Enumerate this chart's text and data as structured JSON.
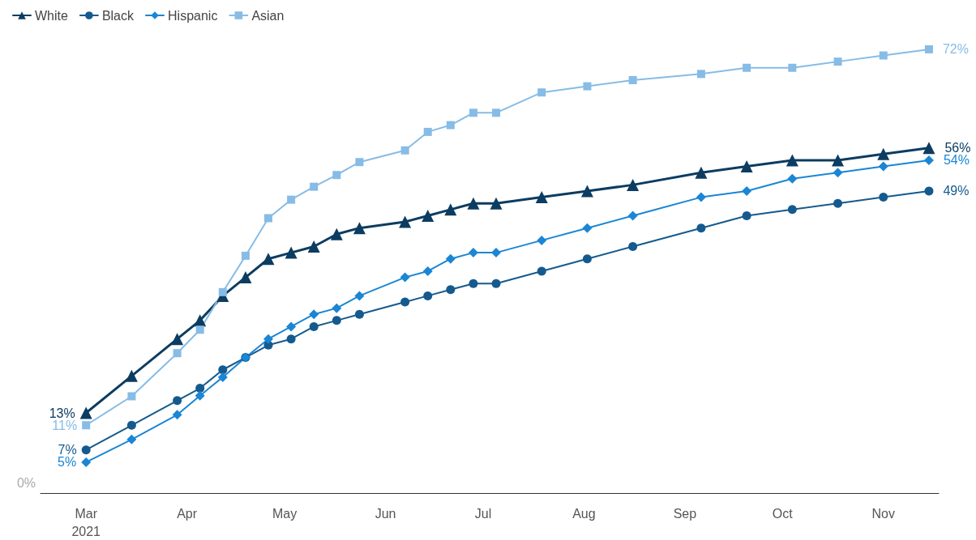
{
  "chart_data": {
    "type": "line",
    "x": [
      "2021-03-01",
      "2021-03-15",
      "2021-03-29",
      "2021-04-05",
      "2021-04-12",
      "2021-04-19",
      "2021-04-26",
      "2021-05-03",
      "2021-05-10",
      "2021-05-17",
      "2021-05-24",
      "2021-06-07",
      "2021-06-14",
      "2021-06-21",
      "2021-06-28",
      "2021-07-05",
      "2021-07-19",
      "2021-08-02",
      "2021-08-16",
      "2021-09-06",
      "2021-09-20",
      "2021-10-04",
      "2021-10-18",
      "2021-11-01",
      "2021-11-15"
    ],
    "series": [
      {
        "name": "White",
        "color": "#0c3c61",
        "marker": "triangle",
        "values": [
          13,
          19,
          25,
          28,
          32,
          35,
          38,
          39,
          40,
          42,
          43,
          44,
          45,
          46,
          47,
          47,
          48,
          49,
          50,
          52,
          53,
          54,
          54,
          55,
          56
        ],
        "value_labels": [
          "13%",
          null,
          null,
          null,
          null,
          null,
          null,
          null,
          null,
          null,
          null,
          null,
          null,
          null,
          null,
          null,
          null,
          null,
          null,
          null,
          null,
          null,
          null,
          null,
          "56%"
        ]
      },
      {
        "name": "Black",
        "color": "#155a8e",
        "marker": "circle",
        "values": [
          7,
          11,
          15,
          17,
          20,
          22,
          24,
          25,
          27,
          28,
          29,
          31,
          32,
          33,
          34,
          34,
          36,
          38,
          40,
          43,
          45,
          46,
          47,
          48,
          49
        ],
        "value_labels": [
          "7%",
          null,
          null,
          null,
          null,
          null,
          null,
          null,
          null,
          null,
          null,
          null,
          null,
          null,
          null,
          null,
          null,
          null,
          null,
          null,
          null,
          null,
          null,
          null,
          "49%"
        ]
      },
      {
        "name": "Hispanic",
        "color": "#1a86d4",
        "marker": "diamond",
        "values": [
          5,
          8.7,
          12.7,
          15.8,
          18.8,
          22,
          25,
          27,
          29,
          30,
          32,
          35,
          36,
          38,
          39,
          39,
          41,
          43,
          45,
          48,
          49,
          51,
          52,
          53,
          54
        ],
        "value_labels": [
          "5%",
          null,
          null,
          null,
          null,
          null,
          null,
          null,
          null,
          null,
          null,
          null,
          null,
          null,
          null,
          null,
          null,
          null,
          null,
          null,
          null,
          null,
          null,
          null,
          "54%"
        ]
      },
      {
        "name": "Asian",
        "color": "#86bce6",
        "marker": "square",
        "values": [
          11,
          15.7,
          22.7,
          26.5,
          32.6,
          38.5,
          44.6,
          47.6,
          49.7,
          51.6,
          53.7,
          55.6,
          58.6,
          59.7,
          61.7,
          61.7,
          65,
          66,
          67,
          68,
          69,
          69,
          70,
          71,
          72
        ],
        "value_labels": [
          "11%",
          null,
          null,
          null,
          null,
          null,
          null,
          null,
          null,
          null,
          null,
          null,
          null,
          null,
          null,
          null,
          null,
          null,
          null,
          null,
          null,
          null,
          null,
          null,
          "72%"
        ]
      }
    ],
    "xlim": [
      "2021-02-15",
      "2021-11-18"
    ],
    "xticks": [
      {
        "value": "2021-03-01",
        "label": "Mar\n2021"
      },
      {
        "value": "2021-04-01",
        "label": "Apr"
      },
      {
        "value": "2021-05-01",
        "label": "May"
      },
      {
        "value": "2021-06-01",
        "label": "Jun"
      },
      {
        "value": "2021-07-01",
        "label": "Jul"
      },
      {
        "value": "2021-08-01",
        "label": "Aug"
      },
      {
        "value": "2021-09-01",
        "label": "Sep"
      },
      {
        "value": "2021-10-01",
        "label": "Oct"
      },
      {
        "value": "2021-11-01",
        "label": "Nov"
      }
    ],
    "annotations": [
      "0%"
    ],
    "grid": false,
    "legend": "top left"
  }
}
